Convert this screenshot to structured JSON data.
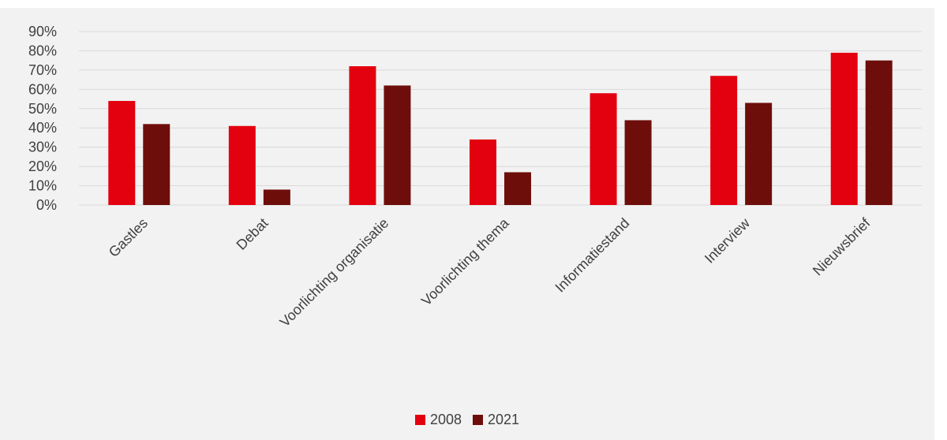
{
  "chart_data": {
    "type": "bar",
    "categories": [
      "Gastles",
      "Debat",
      "Voorlichting organisatie",
      "Voorlichting thema",
      "Informatiestand",
      "Interview",
      "Nieuwsbrief"
    ],
    "series": [
      {
        "name": "2008",
        "color": "#e3000f",
        "values": [
          54,
          41,
          72,
          34,
          58,
          67,
          79
        ]
      },
      {
        "name": "2021",
        "color": "#6e0e0a",
        "values": [
          42,
          8,
          62,
          17,
          44,
          53,
          75
        ]
      }
    ],
    "ylim": [
      0,
      90
    ],
    "yticks": [
      0,
      10,
      20,
      30,
      40,
      50,
      60,
      70,
      80,
      90
    ],
    "ytick_format": "percent",
    "title": "",
    "xlabel": "",
    "ylabel": "",
    "grid": true,
    "legend_position": "bottom"
  }
}
